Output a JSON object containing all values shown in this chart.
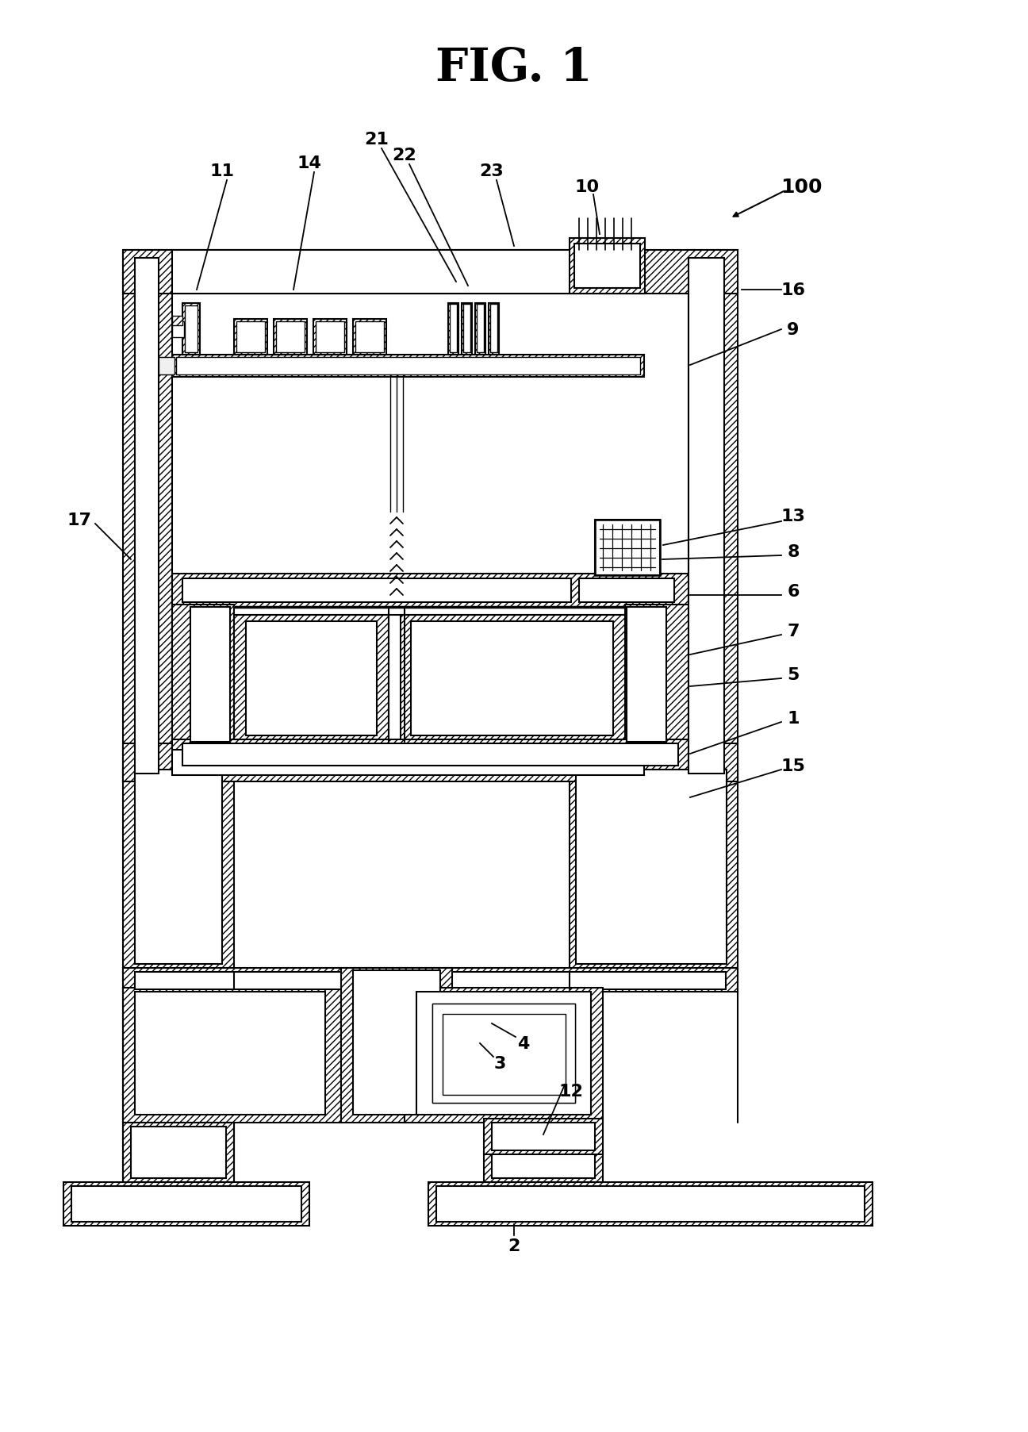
{
  "title": "FIG. 1",
  "title_fontsize": 42,
  "title_fontweight": "bold",
  "bg_color": "#ffffff",
  "hatch": "////",
  "label_fontsize": 16,
  "label_fontweight": "bold"
}
